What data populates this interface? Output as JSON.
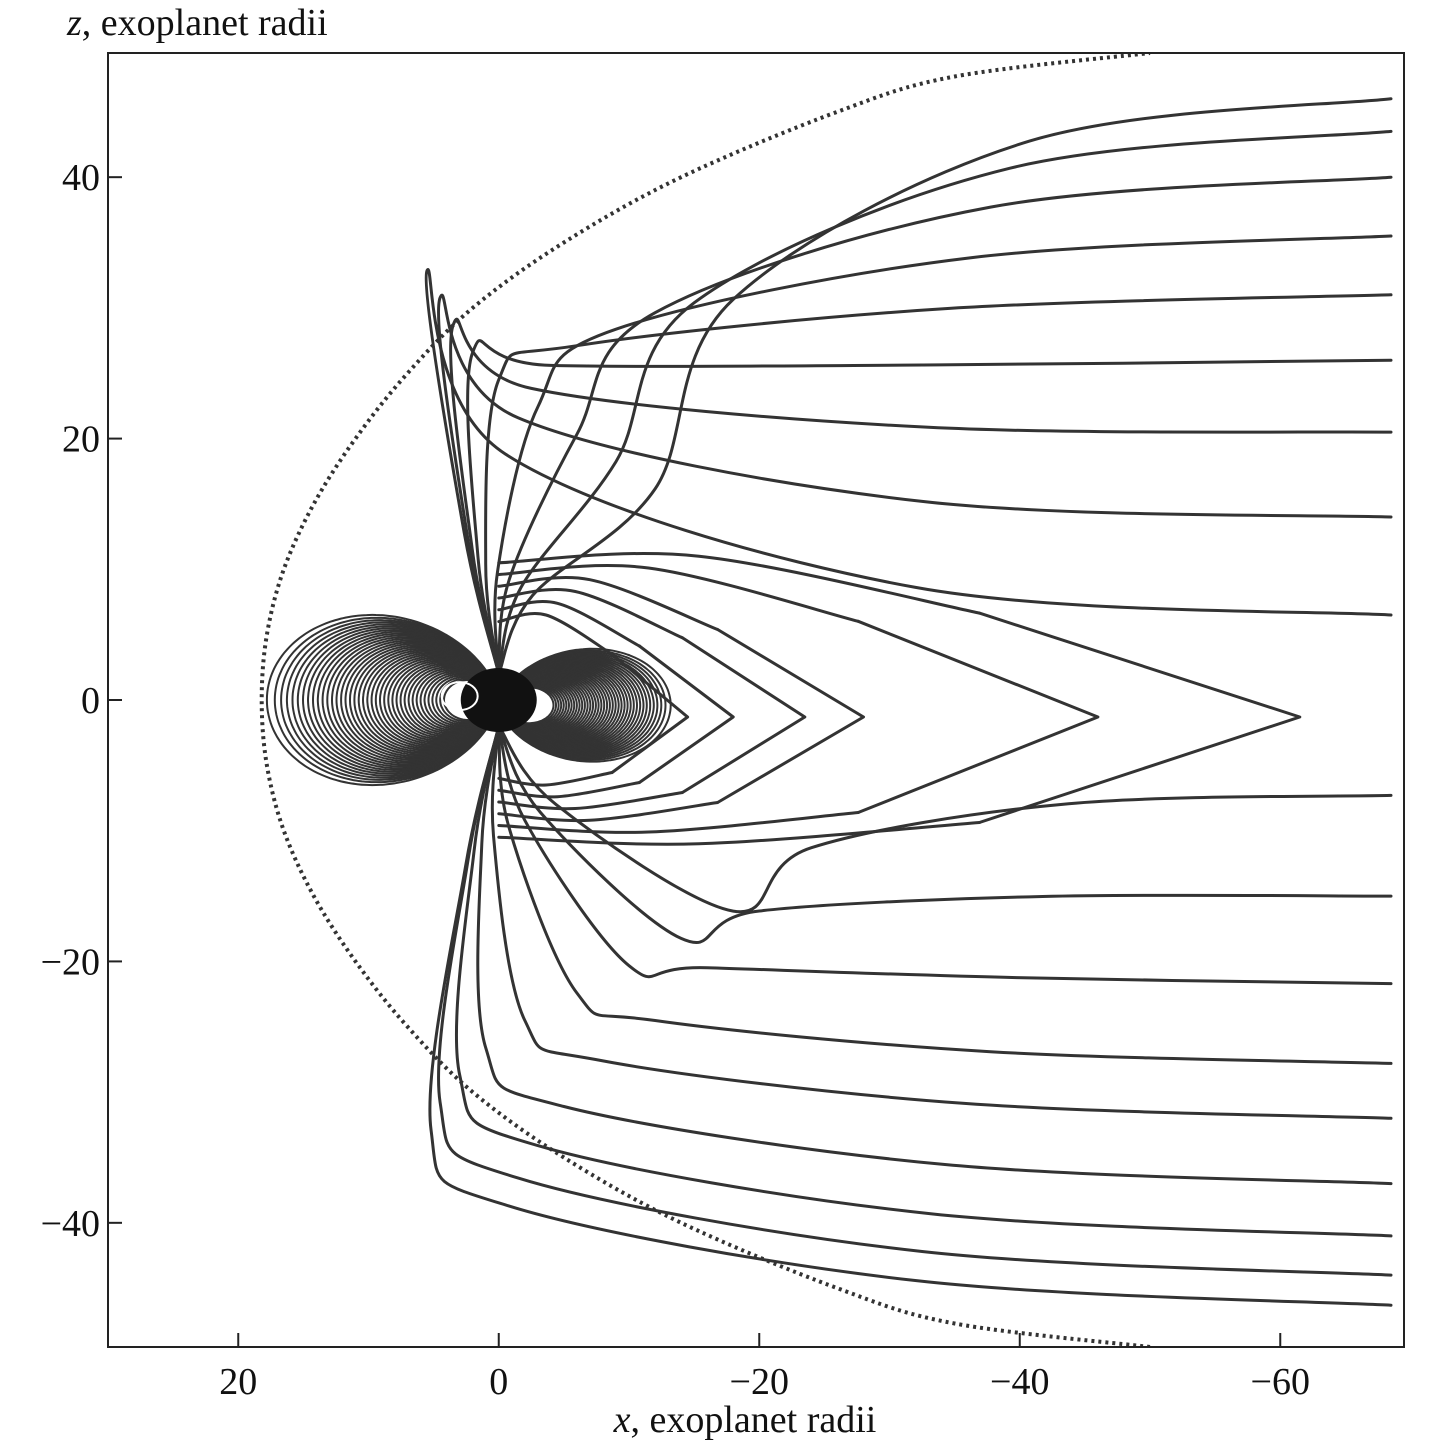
{
  "chart_data": {
    "type": "line",
    "xlabel_var": "x",
    "xlabel_rest": ", exoplanet radii",
    "ylabel_var": "z",
    "ylabel_rest": ", exoplanet radii",
    "xlim": [
      30,
      -69.5
    ],
    "ylim": [
      -49.5,
      49.5
    ],
    "xticks": [
      20,
      0,
      -20,
      -40,
      -60
    ],
    "xtick_labels": [
      "20",
      "0",
      "−20",
      "−40",
      "−60"
    ],
    "yticks": [
      40,
      20,
      0,
      -20,
      -40
    ],
    "ytick_labels": [
      "40",
      "20",
      "0",
      "−20",
      "−40"
    ],
    "grid": false,
    "magnetopause": {
      "style": "dotted",
      "subsolar_x": 18.2,
      "points": [
        [
          18.2,
          0
        ],
        [
          17.8,
          5
        ],
        [
          16.5,
          10
        ],
        [
          14.2,
          15
        ],
        [
          11,
          20
        ],
        [
          7,
          25
        ],
        [
          2,
          30
        ],
        [
          -5,
          35
        ],
        [
          -14,
          40
        ],
        [
          -26,
          45
        ],
        [
          -35,
          47.7
        ],
        [
          -50,
          49.5
        ]
      ]
    },
    "closed_dipole_lines": {
      "count": 40,
      "outer_equatorial_x": 17.8,
      "inner_equatorial_x": 4.2,
      "nightside_outer_x": -13.2,
      "color": "#333333"
    },
    "tail_lines_north": [
      [
        [
          5.8,
          16.5
        ],
        [
          2.5,
          12
        ],
        [
          0,
          7
        ]
      ],
      [
        [
          4.8,
          17.5
        ],
        [
          2,
          12.5
        ],
        [
          0,
          7.5
        ]
      ],
      [
        [
          -4,
          22
        ],
        [
          -1.5,
          12
        ],
        [
          0,
          6
        ]
      ],
      [
        [
          -8,
          25
        ],
        [
          -2.5,
          13
        ],
        [
          0,
          6
        ]
      ],
      [
        [
          -12,
          28
        ],
        [
          -3.5,
          14
        ],
        [
          0,
          6
        ]
      ],
      [
        [
          -20,
          30
        ],
        [
          -5,
          15
        ],
        [
          0,
          6
        ]
      ],
      [
        [
          -30,
          31
        ],
        [
          -7,
          15
        ],
        [
          0,
          6
        ]
      ],
      [
        [
          -40,
          32
        ],
        [
          -8,
          15
        ],
        [
          0,
          6
        ]
      ],
      [
        [
          -50,
          32
        ],
        [
          -10,
          14
        ],
        [
          0,
          6
        ]
      ],
      [
        [
          -20,
          23
        ],
        [
          -3,
          10
        ],
        [
          0,
          5
        ]
      ],
      [
        [
          -10,
          14.5
        ],
        [
          -5,
          7
        ],
        [
          0,
          4
        ]
      ],
      [
        [
          -12,
          12
        ],
        [
          -6,
          5
        ],
        [
          0,
          3
        ]
      ],
      [
        [
          -4,
          10.5
        ],
        [
          -2,
          5
        ],
        [
          0,
          3
        ]
      ]
    ],
    "tail_lines_south": [
      [
        [
          5.2,
          -15.5
        ],
        [
          2.3,
          -11
        ],
        [
          0,
          -6
        ]
      ],
      [
        [
          -3,
          -16
        ],
        [
          -1.3,
          -11
        ],
        [
          0,
          -6
        ]
      ],
      [
        [
          -7,
          -20.5
        ],
        [
          -2,
          -12
        ],
        [
          0,
          -6
        ]
      ],
      [
        [
          -12,
          -24.5
        ],
        [
          -3,
          -13
        ],
        [
          0,
          -6
        ]
      ],
      [
        [
          -20,
          -28
        ],
        [
          -5,
          -14
        ],
        [
          0,
          -6
        ]
      ],
      [
        [
          -28,
          -30.5
        ],
        [
          -7,
          -14
        ],
        [
          0,
          -6
        ]
      ],
      [
        [
          -40,
          -32
        ],
        [
          -8,
          -14
        ],
        [
          0,
          -6
        ]
      ],
      [
        [
          -50,
          -32
        ],
        [
          -10,
          -13
        ],
        [
          0,
          -6
        ]
      ],
      [
        [
          -20,
          -22
        ],
        [
          -3,
          -10
        ],
        [
          0,
          -5
        ]
      ],
      [
        [
          -12,
          -12.5
        ],
        [
          -5,
          -7
        ],
        [
          0,
          -4
        ]
      ],
      [
        [
          -12,
          -11
        ],
        [
          -6,
          -5
        ],
        [
          0,
          -3
        ]
      ],
      [
        [
          -4,
          -10
        ],
        [
          -2,
          -5
        ],
        [
          0,
          -3
        ]
      ]
    ],
    "tail_line_ends_y_north": [
      46,
      43.5,
      40,
      35.5,
      31,
      26,
      20.5,
      14,
      6.5
    ],
    "tail_line_ends_y_south": [
      -7.3,
      -15,
      -21.7,
      -27.8,
      -32,
      -37,
      -41,
      -44,
      -46.3
    ],
    "closed_tail_loops_nose_x": [
      -14.5,
      -18,
      -23.5,
      -28,
      -46,
      -61.5
    ],
    "closed_tail_loops_nose_z": -1.3
  }
}
